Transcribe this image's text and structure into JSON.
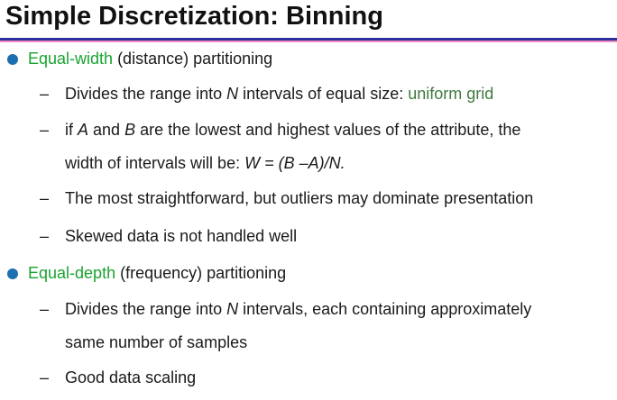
{
  "title": "Simple Discretization: Binning",
  "colors": {
    "accent_green": "#1aa331",
    "grid_green": "#3f7a3f",
    "bullet_blue": "#1c6fb0",
    "rule_blue": "#2e2f9e",
    "rule_pink": "#f28fc1"
  },
  "sections": [
    {
      "term": "Equal-width",
      "rest": " (distance) partitioning",
      "sub": {
        "range": {
          "pre": "Divides the range into ",
          "n": "N",
          "post": " intervals of equal size: ",
          "highlight": "uniform grid"
        },
        "ab": {
          "p1": "if ",
          "a": "A",
          "p2": " and ",
          "b": "B",
          "p3": " are the lowest and highest values of the attribute, the",
          "line2_pre": "width of intervals will be: ",
          "formula": "W = (B –A)/N."
        },
        "outliers": "The most straightforward, but outliers may dominate presentation",
        "skewed": "Skewed data is not handled well"
      }
    },
    {
      "term": "Equal-depth",
      "rest": " (frequency) partitioning",
      "sub": {
        "range": {
          "pre": "Divides the range into ",
          "n": "N",
          "post": " intervals, each containing approximately",
          "line2": "same number of samples"
        },
        "scaling": "Good data scaling"
      }
    }
  ],
  "dash": "–"
}
